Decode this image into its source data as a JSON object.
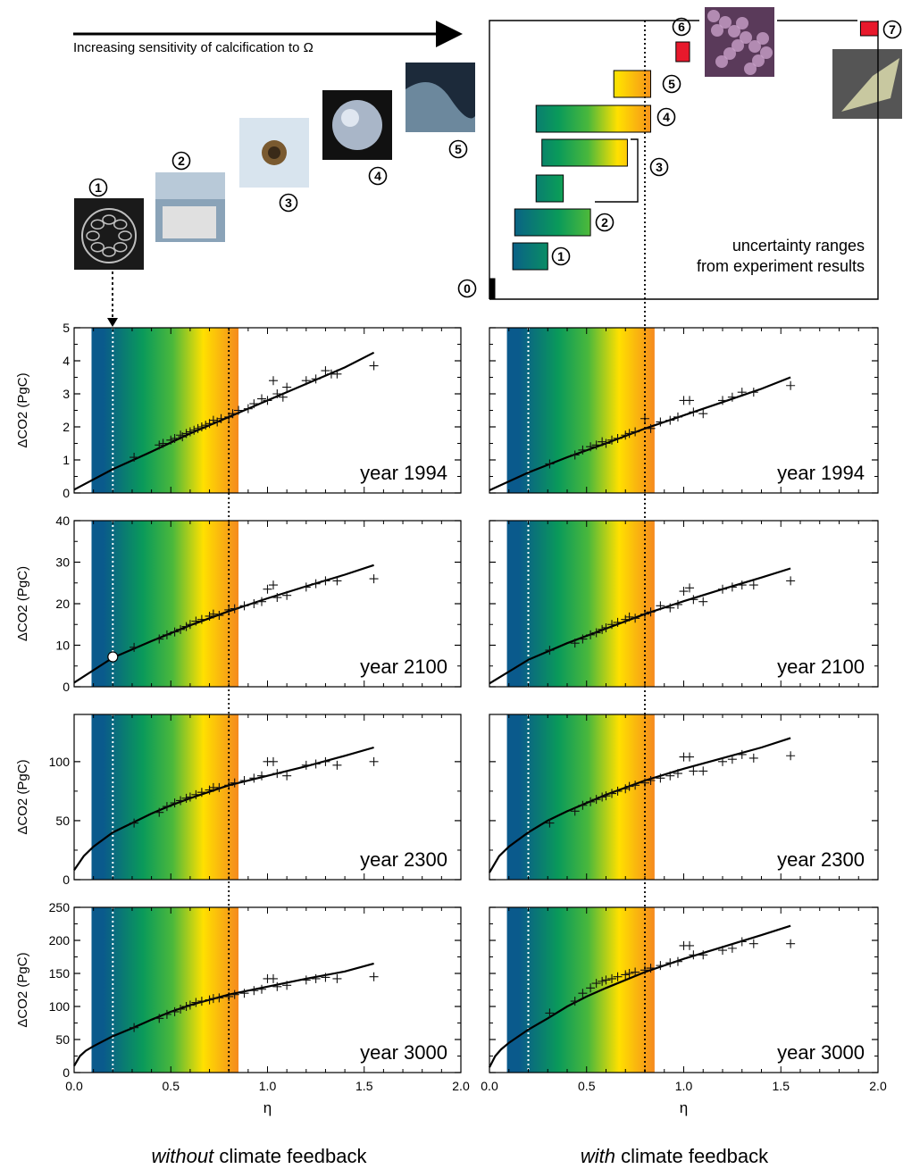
{
  "header": {
    "arrow_label": "Increasing sensitivity of calcification to Ω",
    "uncertainty_label_1": "uncertainty ranges",
    "uncertainty_label_2": "from experiment results"
  },
  "photos": [
    {
      "num": "1",
      "icon": "coccolithophore-photo",
      "colors": [
        "#1a1a1a",
        "#bfbfbf"
      ]
    },
    {
      "num": "2",
      "icon": "mesocosm-bags-photo",
      "colors": [
        "#8aa3b8",
        "#e0e0e0"
      ]
    },
    {
      "num": "3",
      "icon": "foraminifera-photo",
      "colors": [
        "#d8e4ee",
        "#3a2a18"
      ]
    },
    {
      "num": "4",
      "icon": "coccosphere-sem-photo",
      "colors": [
        "#111111",
        "#a9b6c8"
      ]
    },
    {
      "num": "5",
      "icon": "bloom-satellite-photo",
      "colors": [
        "#1c2a3a",
        "#8fb0c8"
      ]
    },
    {
      "num": "6",
      "icon": "coral-photo",
      "colors": [
        "#5a3a5a",
        "#c8a0c8"
      ]
    },
    {
      "num": "7",
      "icon": "pteropod-photo",
      "colors": [
        "#555555",
        "#c8c8a0"
      ]
    }
  ],
  "range_bars": [
    {
      "num": "0",
      "from": 0.0,
      "to": 0.02,
      "style": "black"
    },
    {
      "num": "1",
      "from": 0.12,
      "to": 0.3,
      "style": "gradient"
    },
    {
      "num": "2",
      "from": 0.13,
      "to": 0.52,
      "style": "gradient"
    },
    {
      "num": "3",
      "from": 0.24,
      "to": 0.38,
      "style": "gradient",
      "group": "3a"
    },
    {
      "num": "3",
      "from": 0.27,
      "to": 0.71,
      "style": "gradient",
      "group": "3b"
    },
    {
      "num": "4",
      "from": 0.24,
      "to": 0.83,
      "style": "gradient"
    },
    {
      "num": "5",
      "from": 0.64,
      "to": 0.83,
      "style": "gradient"
    },
    {
      "num": "6",
      "from": 0.96,
      "to": 1.03,
      "style": "red"
    },
    {
      "num": "7",
      "from": 1.91,
      "to": 2.0,
      "style": "red"
    }
  ],
  "reference_lines": {
    "white_dotted_eta": 0.2,
    "black_dotted_eta": 0.8
  },
  "shaded_band": {
    "from": 0.09,
    "to": 0.85
  },
  "colors": {
    "blue": "#0a5a8c",
    "green": "#0a9a5a",
    "yellow": "#ffe000",
    "orange": "#f58a1e",
    "red": "#e8192c"
  },
  "column_titles": {
    "left_italic": "without",
    "left_rest": " climate feedback",
    "right_italic": "with",
    "right_rest": " climate feedback"
  },
  "chart_data": [
    {
      "type": "scatter",
      "panel": "left-1994",
      "year_label": "year 1994",
      "xlabel": "",
      "ylabel": "ΔCO2 (PgC)",
      "xlim": [
        0,
        2
      ],
      "ylim": [
        0,
        5
      ],
      "yticks": [
        0,
        1,
        2,
        3,
        4,
        5
      ],
      "ytick_labels": [
        "0",
        "1",
        "2",
        "3",
        "4",
        "5"
      ],
      "xtick_labels": [],
      "curve": {
        "x": [
          0,
          0.2,
          0.4,
          0.6,
          0.8,
          1.0,
          1.2,
          1.4,
          1.55
        ],
        "y": [
          0.1,
          0.72,
          1.25,
          1.8,
          2.3,
          2.8,
          3.3,
          3.8,
          4.25
        ]
      },
      "points": {
        "x": [
          0.31,
          0.44,
          0.46,
          0.5,
          0.52,
          0.55,
          0.56,
          0.58,
          0.6,
          0.62,
          0.64,
          0.66,
          0.68,
          0.7,
          0.72,
          0.74,
          0.76,
          0.8,
          0.82,
          0.85,
          0.9,
          0.93,
          0.97,
          1.0,
          1.03,
          1.05,
          1.08,
          1.1,
          1.2,
          1.25,
          1.3,
          1.33,
          1.36,
          1.55
        ],
        "y": [
          1.08,
          1.45,
          1.5,
          1.6,
          1.65,
          1.75,
          1.7,
          1.8,
          1.85,
          1.9,
          1.95,
          2.0,
          2.05,
          2.1,
          2.2,
          2.15,
          2.25,
          2.3,
          2.4,
          2.5,
          2.55,
          2.7,
          2.85,
          2.8,
          3.4,
          3.0,
          2.9,
          3.2,
          3.4,
          3.45,
          3.7,
          3.6,
          3.6,
          3.85
        ]
      }
    },
    {
      "type": "scatter",
      "panel": "right-1994",
      "year_label": "year 1994",
      "xlabel": "",
      "ylabel": "",
      "xlim": [
        0,
        2
      ],
      "ylim": [
        0,
        5
      ],
      "yticks": [
        0,
        1,
        2,
        3,
        4,
        5
      ],
      "ytick_labels": [],
      "xtick_labels": [],
      "curve": {
        "x": [
          0,
          0.2,
          0.4,
          0.6,
          0.8,
          1.0,
          1.2,
          1.4,
          1.55
        ],
        "y": [
          0.08,
          0.62,
          1.08,
          1.5,
          1.95,
          2.35,
          2.75,
          3.15,
          3.5
        ]
      },
      "points": {
        "x": [
          0.31,
          0.44,
          0.48,
          0.52,
          0.55,
          0.58,
          0.6,
          0.63,
          0.66,
          0.7,
          0.72,
          0.75,
          0.8,
          0.83,
          0.88,
          0.93,
          0.97,
          1.0,
          1.03,
          1.05,
          1.1,
          1.2,
          1.25,
          1.3,
          1.36,
          1.55
        ],
        "y": [
          0.88,
          1.15,
          1.3,
          1.4,
          1.45,
          1.55,
          1.5,
          1.6,
          1.65,
          1.75,
          1.8,
          1.85,
          2.25,
          1.95,
          2.15,
          2.2,
          2.3,
          2.8,
          2.8,
          2.45,
          2.4,
          2.8,
          2.9,
          3.05,
          3.05,
          3.25
        ]
      }
    },
    {
      "type": "scatter",
      "panel": "left-2100",
      "year_label": "year 2100",
      "xlabel": "",
      "ylabel": "ΔCO2 (PgC)",
      "xlim": [
        0,
        2
      ],
      "ylim": [
        0,
        40
      ],
      "yticks": [
        0,
        10,
        20,
        30,
        40
      ],
      "ytick_labels": [
        "0",
        "10",
        "20",
        "30",
        "40"
      ],
      "xtick_labels": [],
      "marker": {
        "x": 0.2,
        "y": 7.2
      },
      "curve": {
        "x": [
          0,
          0.2,
          0.4,
          0.6,
          0.8,
          1.0,
          1.2,
          1.4,
          1.55
        ],
        "y": [
          1.0,
          7.0,
          11.0,
          14.8,
          18.2,
          21.3,
          24.2,
          27.0,
          29.3
        ]
      },
      "points": {
        "x": [
          0.31,
          0.44,
          0.48,
          0.52,
          0.55,
          0.58,
          0.6,
          0.63,
          0.66,
          0.7,
          0.72,
          0.75,
          0.8,
          0.83,
          0.88,
          0.93,
          0.97,
          1.0,
          1.03,
          1.05,
          1.1,
          1.2,
          1.25,
          1.3,
          1.36,
          1.55
        ],
        "y": [
          9.5,
          11.5,
          12.5,
          13.2,
          13.8,
          14.5,
          15.0,
          15.8,
          16.2,
          17.0,
          17.5,
          17.2,
          18.5,
          18.8,
          19.5,
          20.0,
          20.5,
          23.5,
          24.5,
          21.5,
          22.0,
          24.0,
          24.8,
          25.5,
          25.5,
          26.0
        ]
      }
    },
    {
      "type": "scatter",
      "panel": "right-2100",
      "year_label": "year 2100",
      "xlabel": "",
      "ylabel": "",
      "xlim": [
        0,
        2
      ],
      "ylim": [
        0,
        40
      ],
      "yticks": [
        0,
        10,
        20,
        30,
        40
      ],
      "ytick_labels": [],
      "xtick_labels": [],
      "curve": {
        "x": [
          0,
          0.2,
          0.4,
          0.6,
          0.8,
          1.0,
          1.2,
          1.4,
          1.55
        ],
        "y": [
          0.8,
          6.5,
          10.5,
          14.0,
          17.5,
          20.6,
          23.5,
          26.3,
          28.5
        ]
      },
      "points": {
        "x": [
          0.31,
          0.44,
          0.48,
          0.52,
          0.55,
          0.58,
          0.6,
          0.63,
          0.66,
          0.7,
          0.72,
          0.75,
          0.8,
          0.83,
          0.88,
          0.93,
          0.97,
          1.0,
          1.03,
          1.05,
          1.1,
          1.2,
          1.25,
          1.3,
          1.36,
          1.55
        ],
        "y": [
          8.8,
          10.5,
          11.5,
          12.5,
          13.0,
          13.8,
          14.2,
          15.0,
          15.5,
          16.2,
          16.8,
          16.5,
          17.5,
          18.0,
          19.5,
          19.0,
          19.8,
          23.0,
          23.8,
          21.0,
          20.5,
          23.5,
          24.0,
          24.5,
          24.5,
          25.5
        ]
      }
    },
    {
      "type": "scatter",
      "panel": "left-2300",
      "year_label": "year 2300",
      "xlabel": "",
      "ylabel": "ΔCO2 (PgC)",
      "xlim": [
        0,
        2
      ],
      "ylim": [
        0,
        140
      ],
      "yticks": [
        0,
        50,
        100
      ],
      "ytick_labels": [
        "0",
        "50",
        "100"
      ],
      "xtick_labels": [],
      "curve": {
        "x": [
          0,
          0.05,
          0.1,
          0.2,
          0.3,
          0.4,
          0.5,
          0.6,
          0.8,
          1.0,
          1.2,
          1.4,
          1.55
        ],
        "y": [
          8,
          20,
          28,
          40,
          48,
          56,
          63,
          69,
          80,
          88,
          96,
          105,
          112
        ]
      },
      "points": {
        "x": [
          0.31,
          0.44,
          0.48,
          0.52,
          0.55,
          0.58,
          0.6,
          0.63,
          0.66,
          0.7,
          0.72,
          0.75,
          0.8,
          0.83,
          0.88,
          0.93,
          0.97,
          1.0,
          1.03,
          1.05,
          1.1,
          1.2,
          1.25,
          1.3,
          1.36,
          1.55
        ],
        "y": [
          48,
          57,
          62,
          65,
          67,
          69,
          70,
          72,
          74,
          76,
          78,
          78,
          80,
          82,
          84,
          86,
          88,
          100,
          100,
          90,
          88,
          97,
          98,
          100,
          97,
          100
        ]
      }
    },
    {
      "type": "scatter",
      "panel": "right-2300",
      "year_label": "year 2300",
      "xlabel": "",
      "ylabel": "",
      "xlim": [
        0,
        2
      ],
      "ylim": [
        0,
        140
      ],
      "yticks": [
        0,
        50,
        100
      ],
      "ytick_labels": [],
      "xtick_labels": [],
      "curve": {
        "x": [
          0,
          0.05,
          0.1,
          0.2,
          0.3,
          0.4,
          0.5,
          0.6,
          0.8,
          1.0,
          1.2,
          1.4,
          1.55
        ],
        "y": [
          6,
          20,
          28,
          40,
          50,
          58,
          65,
          72,
          84,
          94,
          103,
          112,
          120
        ]
      },
      "points": {
        "x": [
          0.31,
          0.44,
          0.48,
          0.52,
          0.55,
          0.58,
          0.6,
          0.63,
          0.66,
          0.7,
          0.72,
          0.75,
          0.8,
          0.83,
          0.88,
          0.93,
          0.97,
          1.0,
          1.03,
          1.05,
          1.1,
          1.2,
          1.25,
          1.3,
          1.36,
          1.55
        ],
        "y": [
          48,
          58,
          63,
          66,
          68,
          70,
          71,
          73,
          75,
          77,
          79,
          80,
          82,
          84,
          86,
          88,
          90,
          104,
          104,
          92,
          92,
          100,
          102,
          106,
          103,
          105
        ]
      }
    },
    {
      "type": "scatter",
      "panel": "left-3000",
      "year_label": "year 3000",
      "xlabel": "η",
      "ylabel": "ΔCO2 (PgC)",
      "xlim": [
        0,
        2
      ],
      "ylim": [
        0,
        250
      ],
      "yticks": [
        0,
        50,
        100,
        150,
        200,
        250
      ],
      "ytick_labels": [
        "0",
        "50",
        "100",
        "150",
        "200",
        "250"
      ],
      "xticks": [
        0,
        0.5,
        1.0,
        1.5,
        2.0
      ],
      "xtick_labels": [
        "0.0",
        "0.5",
        "1.0",
        "1.5",
        "2.0"
      ],
      "curve": {
        "x": [
          0,
          0.03,
          0.06,
          0.1,
          0.2,
          0.3,
          0.4,
          0.5,
          0.6,
          0.8,
          1.0,
          1.2,
          1.4,
          1.55
        ],
        "y": [
          10,
          25,
          33,
          40,
          55,
          67,
          80,
          92,
          102,
          118,
          130,
          142,
          153,
          165
        ]
      },
      "points": {
        "x": [
          0.31,
          0.44,
          0.48,
          0.52,
          0.55,
          0.58,
          0.6,
          0.63,
          0.66,
          0.7,
          0.72,
          0.75,
          0.8,
          0.83,
          0.88,
          0.93,
          0.97,
          1.0,
          1.03,
          1.05,
          1.1,
          1.2,
          1.25,
          1.3,
          1.36,
          1.55
        ],
        "y": [
          68,
          82,
          88,
          92,
          96,
          100,
          102,
          106,
          108,
          110,
          112,
          113,
          115,
          118,
          120,
          124,
          126,
          142,
          142,
          130,
          132,
          140,
          142,
          144,
          142,
          145
        ]
      }
    },
    {
      "type": "scatter",
      "panel": "right-3000",
      "year_label": "year 3000",
      "xlabel": "η",
      "ylabel": "",
      "xlim": [
        0,
        2
      ],
      "ylim": [
        0,
        250
      ],
      "yticks": [
        0,
        50,
        100,
        150,
        200,
        250
      ],
      "ytick_labels": [],
      "xticks": [
        0,
        0.5,
        1.0,
        1.5,
        2.0
      ],
      "xtick_labels": [
        "0.0",
        "0.5",
        "1.0",
        "1.5",
        "2.0"
      ],
      "curve": {
        "x": [
          0,
          0.03,
          0.06,
          0.1,
          0.2,
          0.3,
          0.4,
          0.5,
          0.6,
          0.8,
          1.0,
          1.2,
          1.4,
          1.55
        ],
        "y": [
          8,
          25,
          35,
          45,
          65,
          82,
          100,
          115,
          128,
          152,
          172,
          190,
          208,
          222
        ]
      },
      "points": {
        "x": [
          0.31,
          0.44,
          0.48,
          0.52,
          0.55,
          0.58,
          0.6,
          0.63,
          0.66,
          0.7,
          0.72,
          0.75,
          0.8,
          0.83,
          0.88,
          0.93,
          0.97,
          1.0,
          1.03,
          1.05,
          1.1,
          1.2,
          1.25,
          1.3,
          1.36,
          1.55
        ],
        "y": [
          90,
          108,
          120,
          128,
          135,
          138,
          140,
          142,
          145,
          148,
          150,
          152,
          155,
          158,
          162,
          166,
          168,
          192,
          192,
          178,
          178,
          185,
          188,
          198,
          195,
          195
        ]
      }
    }
  ]
}
